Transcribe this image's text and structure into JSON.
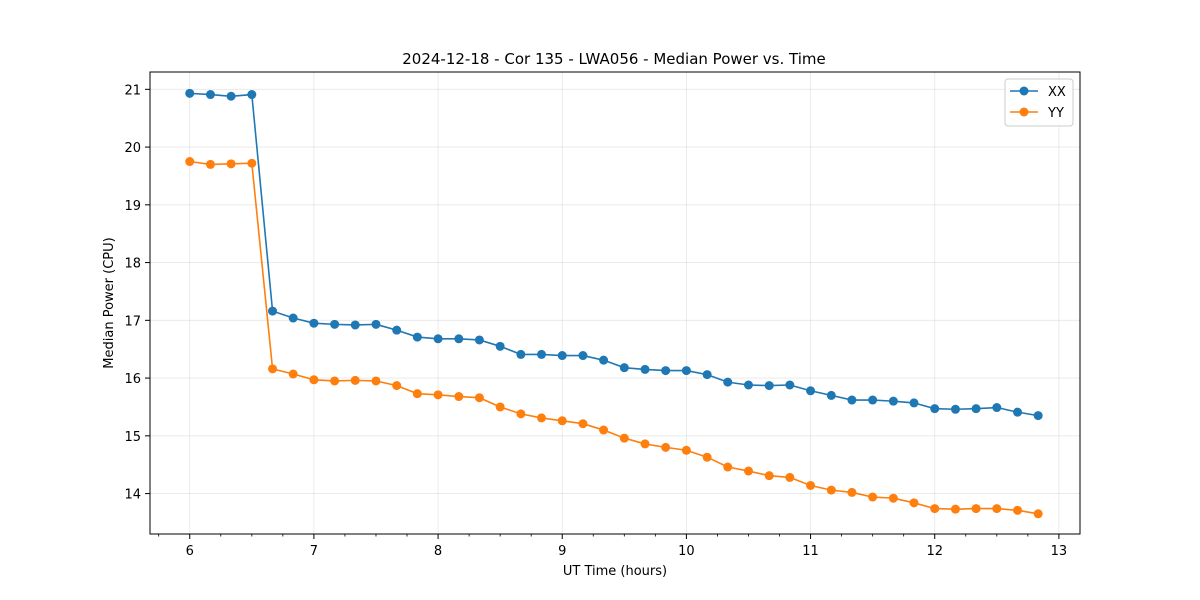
{
  "chart_data": {
    "type": "line",
    "title": "2024-12-18 - Cor 135 - LWA056 - Median Power vs. Time",
    "xlabel": "UT Time (hours)",
    "ylabel": "Median Power (CPU)",
    "xlim": [
      5.68,
      13.17
    ],
    "ylim": [
      13.3,
      21.3
    ],
    "xticks": [
      6,
      7,
      8,
      9,
      10,
      11,
      12,
      13
    ],
    "yticks": [
      14,
      15,
      16,
      17,
      18,
      19,
      20,
      21
    ],
    "minor_xticks_step": 0.25,
    "grid": true,
    "legend_position": "top-right",
    "x": [
      6.0,
      6.167,
      6.333,
      6.5,
      6.667,
      6.833,
      7.0,
      7.167,
      7.333,
      7.5,
      7.667,
      7.833,
      8.0,
      8.167,
      8.333,
      8.5,
      8.667,
      8.833,
      9.0,
      9.167,
      9.333,
      9.5,
      9.667,
      9.833,
      10.0,
      10.167,
      10.333,
      10.5,
      10.667,
      10.833,
      11.0,
      11.167,
      11.333,
      11.5,
      11.667,
      11.833,
      12.0,
      12.167,
      12.333,
      12.5,
      12.667,
      12.833
    ],
    "series": [
      {
        "name": "XX",
        "color": "#1f77b4",
        "values": [
          20.93,
          20.91,
          20.88,
          20.91,
          17.16,
          17.04,
          16.95,
          16.93,
          16.92,
          16.93,
          16.83,
          16.71,
          16.68,
          16.68,
          16.66,
          16.55,
          16.41,
          16.41,
          16.39,
          16.39,
          16.31,
          16.18,
          16.15,
          16.13,
          16.13,
          16.06,
          15.93,
          15.88,
          15.87,
          15.88,
          15.78,
          15.7,
          15.62,
          15.62,
          15.6,
          15.57,
          15.47,
          15.46,
          15.47,
          15.49,
          15.41,
          15.35
        ]
      },
      {
        "name": "YY",
        "color": "#ff7f0e",
        "values": [
          19.75,
          19.7,
          19.71,
          19.72,
          16.16,
          16.07,
          15.97,
          15.95,
          15.96,
          15.95,
          15.87,
          15.73,
          15.71,
          15.68,
          15.66,
          15.5,
          15.38,
          15.31,
          15.26,
          15.21,
          15.1,
          14.96,
          14.86,
          14.8,
          14.75,
          14.63,
          14.46,
          14.39,
          14.31,
          14.28,
          14.14,
          14.06,
          14.02,
          13.94,
          13.92,
          13.84,
          13.74,
          13.73,
          13.74,
          13.74,
          13.71,
          13.65
        ]
      }
    ]
  }
}
